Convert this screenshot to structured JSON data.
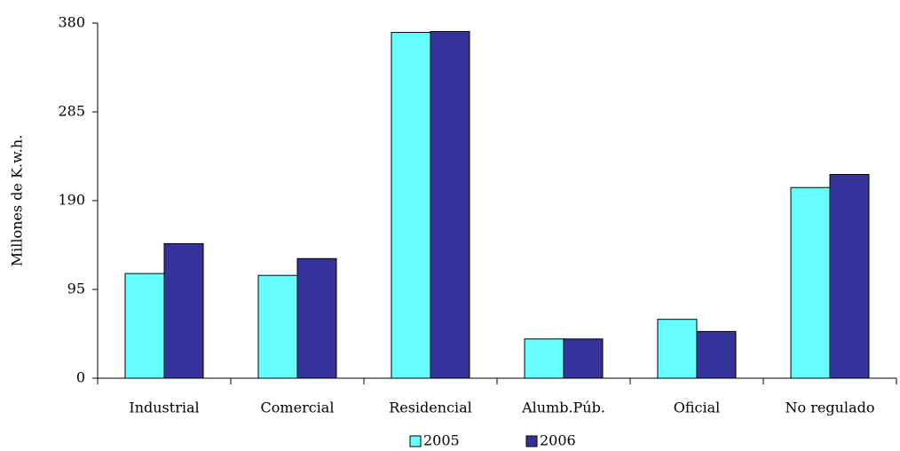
{
  "chart_data": {
    "type": "bar",
    "y_label": "Millones de K.w.h.",
    "categories": [
      "Industrial",
      "Comercial",
      "Residencial",
      "Alumb.Púb.",
      "Oficial",
      "No regulado"
    ],
    "series": [
      {
        "name": "2005",
        "color": "#66ffff",
        "values": [
          112,
          110,
          370,
          42,
          63,
          204
        ]
      },
      {
        "name": "2006",
        "color": "#333399",
        "values": [
          144,
          128,
          371,
          42,
          50,
          218
        ]
      }
    ],
    "ylim": [
      0,
      380
    ],
    "yticks": [
      0,
      95,
      190,
      285,
      380
    ],
    "grid": false,
    "legend": "bottom"
  }
}
